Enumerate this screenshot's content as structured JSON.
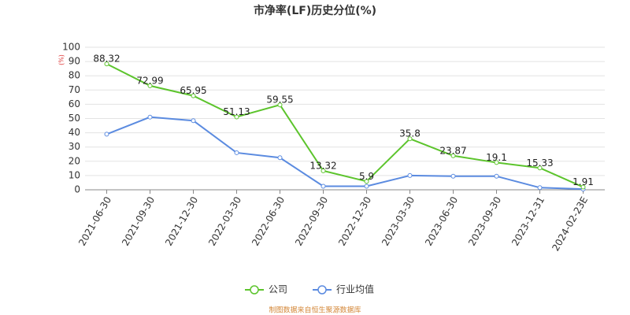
{
  "chart_data": {
    "type": "line",
    "title": "市净率(LF)历史分位(%)",
    "y_unit": "(%)",
    "categories": [
      "2021-06-30",
      "2021-09-30",
      "2021-12-30",
      "2022-03-30",
      "2022-06-30",
      "2022-09-30",
      "2022-12-30",
      "2023-03-30",
      "2023-06-30",
      "2023-09-30",
      "2023-12-31",
      "2024-02-23E"
    ],
    "series": [
      {
        "name": "公司",
        "color": "#5cc42c",
        "values": [
          88.32,
          72.99,
          65.95,
          51.13,
          59.55,
          13.32,
          5.9,
          35.8,
          23.87,
          19.1,
          15.33,
          1.91
        ],
        "labels": true
      },
      {
        "name": "行业均值",
        "color": "#5b8be0",
        "values": [
          39,
          51,
          48.5,
          26,
          22.5,
          2.5,
          2.5,
          10,
          9.5,
          9.5,
          1.5,
          0.5
        ]
      }
    ],
    "ylim": [
      0,
      100
    ],
    "yticks": [
      0,
      10,
      20,
      30,
      40,
      50,
      60,
      70,
      80,
      90,
      100
    ],
    "grid": true,
    "source": "制图数据来自恒生聚源数据库"
  }
}
